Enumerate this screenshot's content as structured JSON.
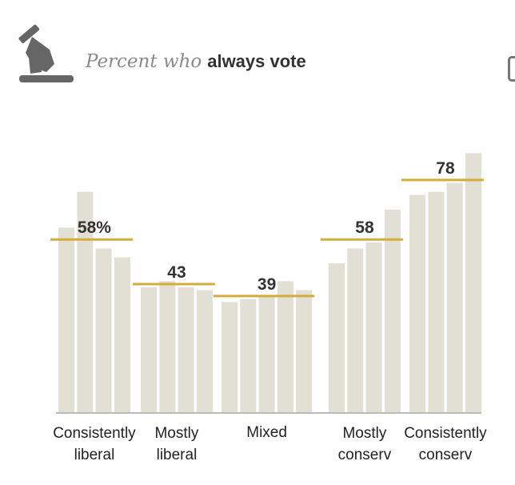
{
  "header": {
    "title_prefix": "Percent who",
    "title_emphasis": "always vote",
    "icon": "ballot-hand-icon"
  },
  "colors": {
    "bar": "#e2e0d4",
    "mean_line": "#d4ac3c",
    "axis": "#bbbbbb"
  },
  "chart_data": {
    "type": "bar",
    "title": "Percent who always vote",
    "ylim": [
      0,
      90
    ],
    "groups": [
      {
        "label_lines": [
          "Consistently",
          "liberal"
        ],
        "mean": 58,
        "mean_label": "58%",
        "values": [
          62,
          74,
          55,
          52
        ]
      },
      {
        "label_lines": [
          "Mostly",
          "liberal"
        ],
        "mean": 43,
        "mean_label": "43",
        "values": [
          42,
          44,
          42,
          41
        ]
      },
      {
        "label_lines": [
          "Mixed"
        ],
        "mean": 39,
        "mean_label": "39",
        "values": [
          37,
          38,
          39,
          44,
          41
        ]
      },
      {
        "label_lines": [
          "Mostly",
          "conserv"
        ],
        "mean": 58,
        "mean_label": "58",
        "values": [
          50,
          55,
          57,
          68
        ]
      },
      {
        "label_lines": [
          "Consistently",
          "conserv"
        ],
        "mean": 78,
        "mean_label": "78",
        "values": [
          73,
          74,
          77,
          87
        ]
      }
    ]
  }
}
